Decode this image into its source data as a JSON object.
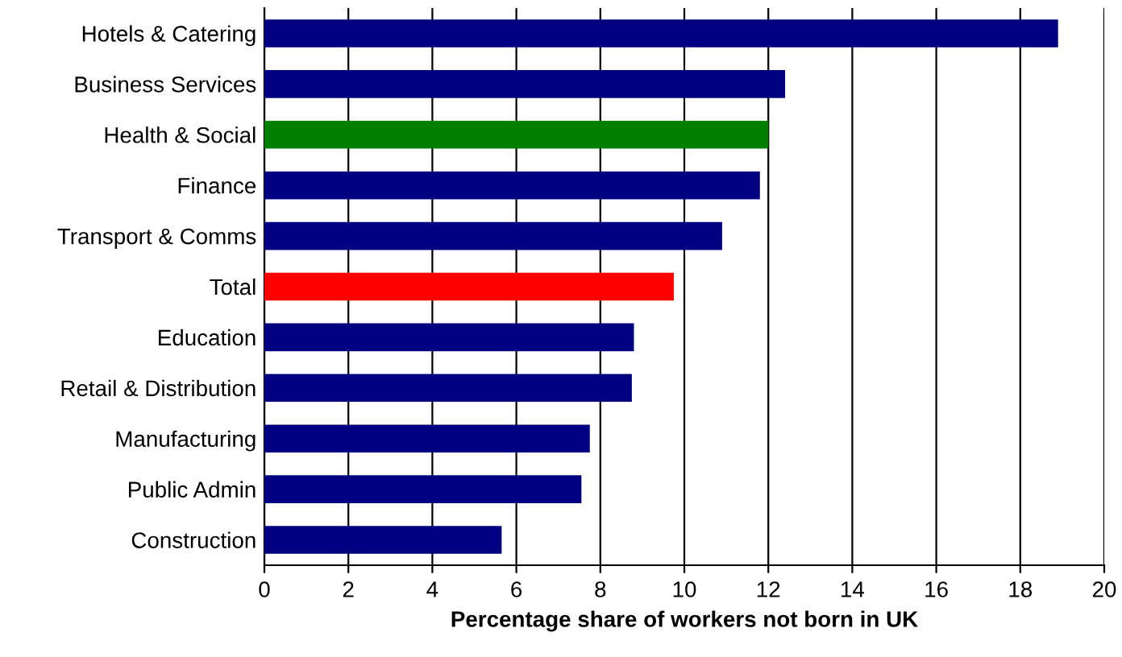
{
  "chart_data": {
    "type": "bar",
    "orientation": "horizontal",
    "xlabel": "Percentage share of workers not born in UK",
    "categories": [
      "Hotels & Catering",
      "Business Services",
      "Health & Social",
      "Finance",
      "Transport & Comms",
      "Total",
      "Education",
      "Retail & Distribution",
      "Manufacturing",
      "Public Admin",
      "Construction"
    ],
    "values": [
      18.9,
      12.4,
      12.0,
      11.8,
      10.9,
      9.75,
      8.8,
      8.75,
      7.75,
      7.55,
      5.65
    ],
    "colors": [
      "#000080",
      "#000080",
      "#008000",
      "#000080",
      "#000080",
      "#ff0000",
      "#000080",
      "#000080",
      "#000080",
      "#000080",
      "#000080"
    ],
    "xlim": [
      0,
      20
    ],
    "xticks": [
      0,
      2,
      4,
      6,
      8,
      10,
      12,
      14,
      16,
      18,
      20
    ],
    "grid": "x",
    "legend": false
  }
}
